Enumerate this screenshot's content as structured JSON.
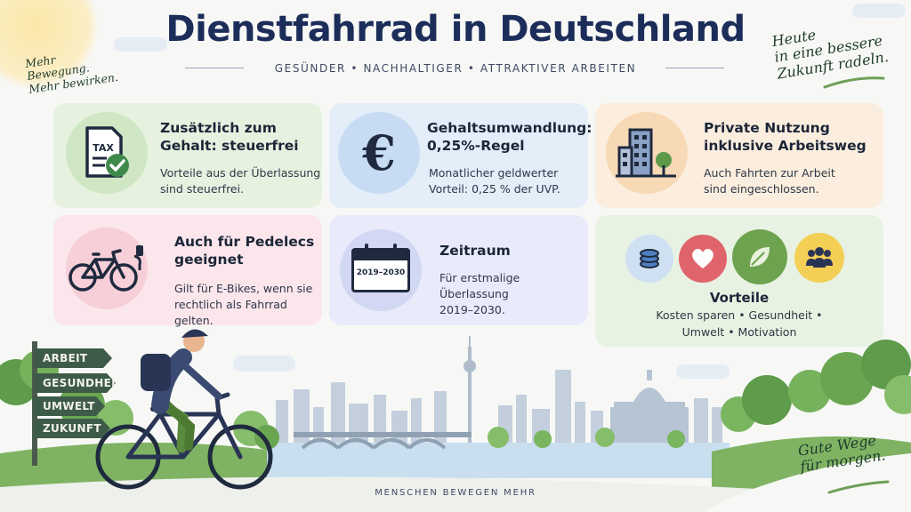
{
  "header": {
    "title": "Dienstfahrrad in Deutschland",
    "subtitle": "GESÜNDER  •  NACHHALTIGER  •  ATTRAKTIVER ARBEITEN"
  },
  "notes": {
    "top_left": [
      "Mehr",
      "Bewegung.",
      "Mehr bewirken."
    ],
    "top_right": [
      "Heute",
      "in eine bessere",
      "Zukunft radeln."
    ],
    "bottom_right": [
      "Gute Wege",
      "für morgen."
    ]
  },
  "cards": [
    {
      "id": "tax",
      "icon": "tax-document-check-icon",
      "icon_text": "TAX",
      "title": [
        "Zusätzlich zum",
        "Gehalt: steuerfrei"
      ],
      "text": [
        "Vorteile aus der Überlassung",
        "sind steuerfrei."
      ],
      "bg": "#e6f2df",
      "circle": "#cfe7c4"
    },
    {
      "id": "euro",
      "icon": "euro-icon",
      "icon_text": "€",
      "title": [
        "Gehaltsumwandlung:",
        "0,25%-Regel"
      ],
      "text": [
        "Monatlicher geldwerter",
        "Vorteil: 0,25 % der UVP."
      ],
      "bg": "#e3eef9",
      "circle": "#c7dcf2"
    },
    {
      "id": "private",
      "icon": "buildings-icon",
      "title": [
        "Private Nutzung",
        "inklusive Arbeitsweg"
      ],
      "text": [
        "Auch Fahrten zur Arbeit",
        "sind eingeschlossen."
      ],
      "bg": "#fbeede",
      "circle": "#f7d9b6"
    },
    {
      "id": "pedelec",
      "icon": "e-bike-plug-icon",
      "title": [
        "Auch für Pedelecs",
        "geeignet"
      ],
      "text": [
        "Gilt für E-Bikes, wenn sie",
        "rechtlich als Fahrrad gelten."
      ],
      "bg": "#fbe6ec",
      "circle": "#f6cfd9"
    },
    {
      "id": "zeitraum",
      "icon": "calendar-icon",
      "icon_text": "2019–2030",
      "title": [
        "Zeitraum"
      ],
      "text": [
        "Für erstmalige Überlassung",
        "2019–2030."
      ],
      "bg": "#e9ebfa",
      "circle": "#d2d8f3"
    }
  ],
  "vorteile": {
    "label": "Vorteile",
    "text": [
      "Kosten sparen • Gesundheit •",
      "Umwelt • Motivation"
    ],
    "icons": [
      {
        "name": "coins-icon",
        "color": "#4f7fc0",
        "bg": "#cfe0f3"
      },
      {
        "name": "heart-icon",
        "color": "#ffffff",
        "bg": "#e0646c"
      },
      {
        "name": "leaf-icon",
        "color": "#e8f2dc",
        "bg": "#6da24e"
      },
      {
        "name": "people-icon",
        "color": "#2a3556",
        "bg": "#f4cf56"
      }
    ]
  },
  "signpost": [
    "ARBEIT",
    "GESUNDHEIT",
    "UMWELT",
    "ZUKUNFT"
  ],
  "footer": "MENSCHEN BEWEGEN MEHR",
  "colors": {
    "title": "#1c2d5a",
    "sign": "#3e5b49",
    "water": "#c9dff0"
  }
}
